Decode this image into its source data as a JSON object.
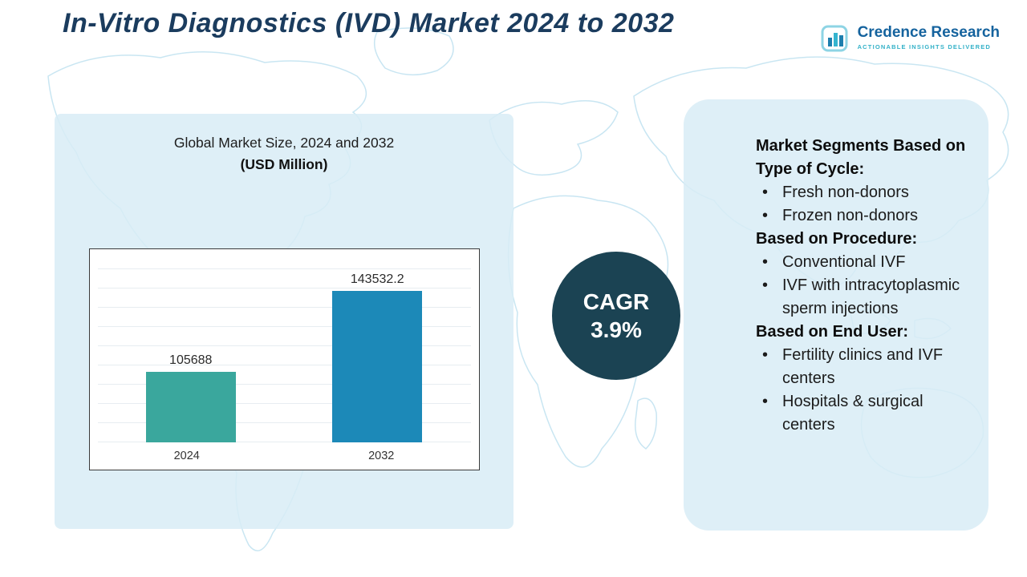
{
  "header": {
    "title": "In-Vitro Diagnostics (IVD) Market 2024 to 2032"
  },
  "logo": {
    "name": "Credence Research",
    "tagline": "Actionable Insights Delivered"
  },
  "chart_panel": {
    "title": "Global Market Size, 2024 and 2032",
    "subtitle": "(USD Million)"
  },
  "chart_data": {
    "type": "bar",
    "title": "Global Market Size, 2024 and 2032",
    "subtitle": "(USD Million)",
    "categories": [
      "2024",
      "2032"
    ],
    "values": [
      105688,
      143532.2
    ],
    "value_labels": [
      "105688",
      "143532.2"
    ],
    "colors": [
      "#3AA79D",
      "#1C89B8"
    ],
    "ylim": [
      73000,
      160000
    ],
    "grid": true,
    "legend": "none"
  },
  "cagr": {
    "label": "CAGR",
    "value": "3.9%"
  },
  "segments": {
    "sections": [
      {
        "heading": "Market Segments Based on Type of Cycle:",
        "items": [
          "Fresh non-donors",
          "Frozen non-donors"
        ]
      },
      {
        "heading": "Based on Procedure:",
        "items": [
          "Conventional IVF",
          "IVF with intracytoplasmic sperm injections"
        ]
      },
      {
        "heading": "Based on End User:",
        "items": [
          "Fertility clinics and IVF centers",
          "Hospitals & surgical centers"
        ]
      }
    ]
  }
}
